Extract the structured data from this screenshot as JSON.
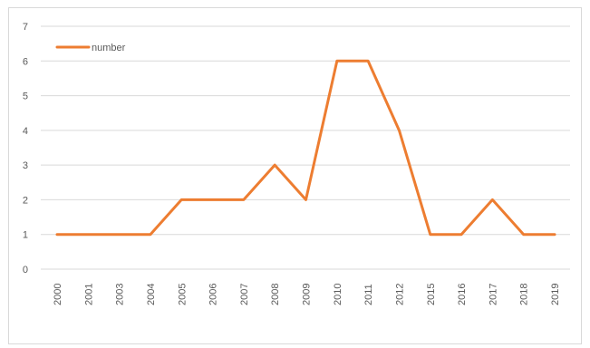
{
  "chart_data": {
    "type": "line",
    "categories": [
      "2000",
      "2001",
      "2003",
      "2004",
      "2005",
      "2006",
      "2007",
      "2008",
      "2009",
      "2010",
      "2011",
      "2012",
      "2015",
      "2016",
      "2017",
      "2018",
      "2019"
    ],
    "series": [
      {
        "name": "number",
        "values": [
          1,
          1,
          1,
          1,
          2,
          2,
          2,
          3,
          2,
          6,
          6,
          4,
          1,
          1,
          2,
          1,
          1
        ],
        "color": "#ed7d31"
      }
    ],
    "y_ticks": [
      "0",
      "1",
      "2",
      "3",
      "4",
      "5",
      "6",
      "7"
    ],
    "ylim": [
      0,
      7
    ],
    "grid": true,
    "legend": "top-left",
    "gridline_color": "#d9d9d9",
    "axis_label_color": "#595959"
  }
}
